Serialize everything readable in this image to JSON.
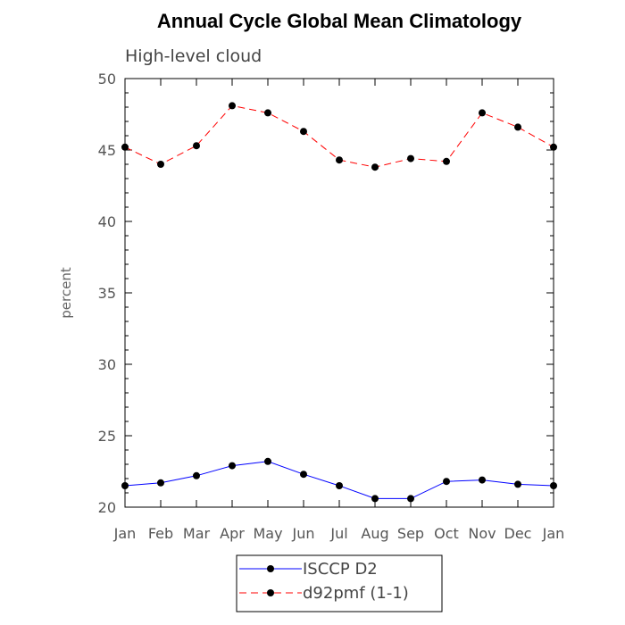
{
  "chart_data": {
    "type": "line",
    "title": "Annual Cycle Global Mean Climatology",
    "subtitle": "High-level cloud",
    "xlabel": "",
    "ylabel": "percent",
    "ylim": [
      20,
      50
    ],
    "yticks": [
      20,
      25,
      30,
      35,
      40,
      45,
      50
    ],
    "categories": [
      "Jan",
      "Feb",
      "Mar",
      "Apr",
      "May",
      "Jun",
      "Jul",
      "Aug",
      "Sep",
      "Oct",
      "Nov",
      "Dec",
      "Jan"
    ],
    "series": [
      {
        "name": "ISCCP D2",
        "color": "#0000ff",
        "dash": "solid",
        "values": [
          21.5,
          21.7,
          22.2,
          22.9,
          23.2,
          22.3,
          21.5,
          20.6,
          20.6,
          21.8,
          21.9,
          21.6,
          21.5
        ]
      },
      {
        "name": "d92pmf (1-1)",
        "color": "#ff0000",
        "dash": "dashed",
        "values": [
          45.2,
          44.0,
          45.3,
          48.1,
          47.6,
          46.3,
          44.3,
          43.8,
          44.4,
          44.2,
          47.6,
          46.6,
          45.2
        ]
      }
    ],
    "grid": false,
    "legend_position": "bottom-center"
  }
}
